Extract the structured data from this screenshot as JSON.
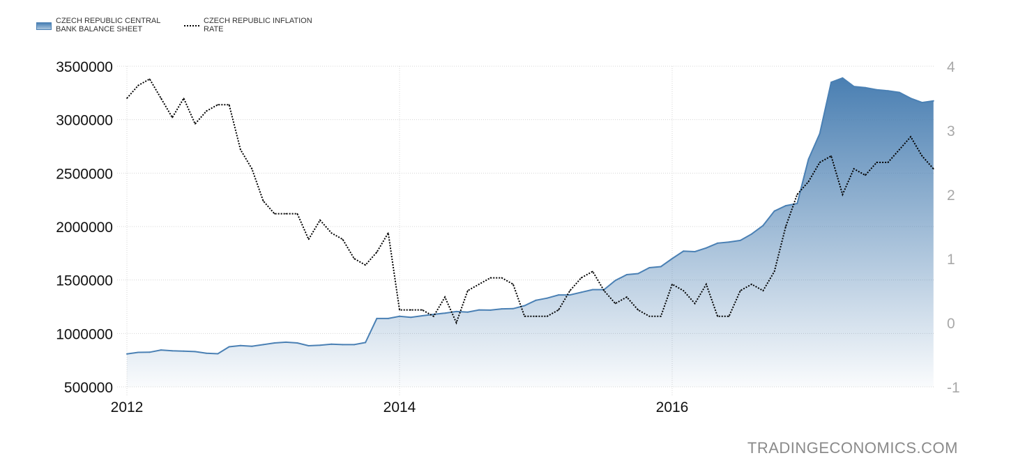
{
  "chart_data": {
    "type": "line",
    "title": "",
    "legend_position": "top-left",
    "series": [
      {
        "name": "CZECH REPUBLIC CENTRAL BANK BALANCE SHEET",
        "style": "area",
        "axis": "left",
        "color": "#4a80b4",
        "x": [
          2012.0,
          2012.083,
          2012.167,
          2012.25,
          2012.333,
          2012.417,
          2012.5,
          2012.583,
          2012.667,
          2012.75,
          2012.833,
          2012.917,
          2013.0,
          2013.083,
          2013.167,
          2013.25,
          2013.333,
          2013.417,
          2013.5,
          2013.583,
          2013.667,
          2013.75,
          2013.833,
          2013.917,
          2014.0,
          2014.083,
          2014.167,
          2014.25,
          2014.333,
          2014.417,
          2014.5,
          2014.583,
          2014.667,
          2014.75,
          2014.833,
          2014.917,
          2015.0,
          2015.083,
          2015.167,
          2015.25,
          2015.333,
          2015.417,
          2015.5,
          2015.583,
          2015.667,
          2015.75,
          2015.833,
          2015.917,
          2016.0,
          2016.083,
          2016.167,
          2016.25,
          2016.333,
          2016.417,
          2016.5,
          2016.583,
          2016.667,
          2016.75,
          2016.833,
          2016.917,
          2017.0,
          2017.083,
          2017.167,
          2017.25,
          2017.333,
          2017.417,
          2017.5,
          2017.583,
          2017.667,
          2017.75,
          2017.833,
          2017.917
        ],
        "values": [
          808000,
          823000,
          824000,
          845000,
          838000,
          834000,
          830000,
          815000,
          810000,
          875000,
          887000,
          880000,
          895000,
          911000,
          918000,
          911000,
          885000,
          890000,
          900000,
          895000,
          895000,
          915000,
          1140000,
          1140000,
          1160000,
          1150000,
          1165000,
          1178000,
          1190000,
          1205000,
          1200000,
          1220000,
          1218000,
          1230000,
          1232000,
          1260000,
          1310000,
          1330000,
          1360000,
          1360000,
          1385000,
          1410000,
          1410000,
          1495000,
          1550000,
          1560000,
          1615000,
          1625000,
          1700000,
          1770000,
          1765000,
          1800000,
          1845000,
          1855000,
          1870000,
          1930000,
          2010000,
          2145000,
          2195000,
          2215000,
          2630000,
          2870000,
          3350000,
          3390000,
          3310000,
          3300000,
          3280000,
          3270000,
          3255000,
          3200000,
          3160000,
          3175000
        ]
      },
      {
        "name": "CZECH REPUBLIC INFLATION RATE",
        "style": "dotted-line",
        "axis": "right",
        "color": "#000000",
        "x": [
          2012.0,
          2012.083,
          2012.167,
          2012.25,
          2012.333,
          2012.417,
          2012.5,
          2012.583,
          2012.667,
          2012.75,
          2012.833,
          2012.917,
          2013.0,
          2013.083,
          2013.167,
          2013.25,
          2013.333,
          2013.417,
          2013.5,
          2013.583,
          2013.667,
          2013.75,
          2013.833,
          2013.917,
          2014.0,
          2014.083,
          2014.167,
          2014.25,
          2014.333,
          2014.417,
          2014.5,
          2014.583,
          2014.667,
          2014.75,
          2014.833,
          2014.917,
          2015.0,
          2015.083,
          2015.167,
          2015.25,
          2015.333,
          2015.417,
          2015.5,
          2015.583,
          2015.667,
          2015.75,
          2015.833,
          2015.917,
          2016.0,
          2016.083,
          2016.167,
          2016.25,
          2016.333,
          2016.417,
          2016.5,
          2016.583,
          2016.667,
          2016.75,
          2016.833,
          2016.917,
          2017.0,
          2017.083,
          2017.167,
          2017.25,
          2017.333,
          2017.417,
          2017.5,
          2017.583,
          2017.667,
          2017.75,
          2017.833,
          2017.917
        ],
        "values": [
          3.5,
          3.7,
          3.8,
          3.5,
          3.2,
          3.5,
          3.1,
          3.3,
          3.4,
          3.4,
          2.7,
          2.4,
          1.9,
          1.7,
          1.7,
          1.7,
          1.3,
          1.6,
          1.4,
          1.3,
          1.0,
          0.9,
          1.1,
          1.4,
          0.2,
          0.2,
          0.2,
          0.1,
          0.4,
          0.0,
          0.5,
          0.6,
          0.7,
          0.7,
          0.6,
          0.1,
          0.1,
          0.1,
          0.2,
          0.5,
          0.7,
          0.8,
          0.5,
          0.3,
          0.4,
          0.2,
          0.1,
          0.1,
          0.6,
          0.5,
          0.3,
          0.6,
          0.1,
          0.1,
          0.5,
          0.6,
          0.5,
          0.8,
          1.5,
          2.0,
          2.2,
          2.5,
          2.6,
          2.0,
          2.4,
          2.3,
          2.5,
          2.5,
          2.7,
          2.9,
          2.6,
          2.4
        ]
      }
    ],
    "xlabel": "",
    "ylabel": "",
    "xlim": [
      2012.0,
      2017.95
    ],
    "x_ticks": [
      2012,
      2014,
      2016
    ],
    "x_tick_labels": [
      "2012",
      "2014",
      "2016"
    ],
    "y_left": {
      "ylim": [
        500000,
        3500000
      ],
      "ticks": [
        500000,
        1000000,
        1500000,
        2000000,
        2500000,
        3000000,
        3500000
      ],
      "tick_labels": [
        "500000",
        "1000000",
        "1500000",
        "2000000",
        "2500000",
        "3000000",
        "3500000"
      ]
    },
    "y_right": {
      "ylim": [
        -1,
        4
      ],
      "ticks": [
        -1,
        0,
        1,
        2,
        3,
        4
      ],
      "tick_labels": [
        "-1",
        "0",
        "1",
        "2",
        "3",
        "4"
      ]
    },
    "grid": true,
    "watermark": "TRADINGECONOMICS.COM"
  }
}
